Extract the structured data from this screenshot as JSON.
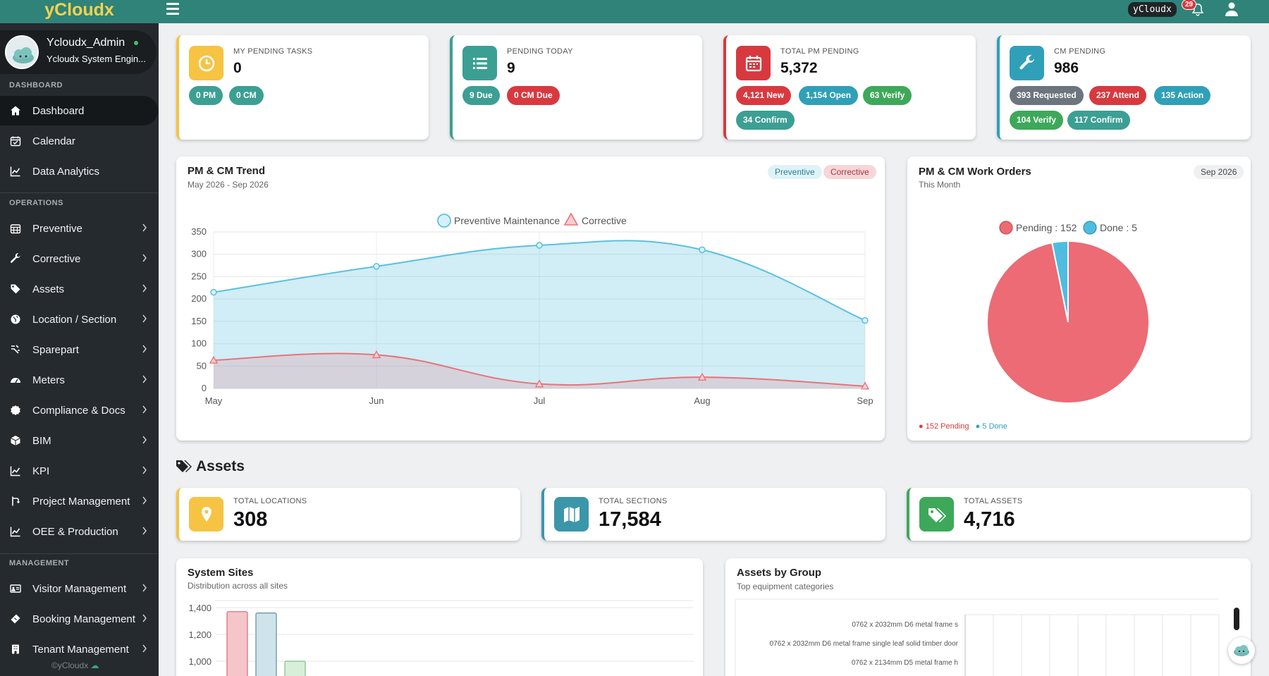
{
  "brand": "yCloudx",
  "topbar": {
    "chip": "yCloudx",
    "notifications": "29"
  },
  "profile": {
    "name": "Ycloudx_Admin",
    "role": "Ycloudx System Engin..."
  },
  "sidebar": {
    "sections": {
      "dashboard": "DASHBOARD",
      "operations": "OPERATIONS",
      "management": "MANAGEMENT"
    },
    "items": [
      {
        "label": "Dashboard",
        "icon": "home-icon"
      },
      {
        "label": "Calendar",
        "icon": "calendar-icon"
      },
      {
        "label": "Data Analytics",
        "icon": "line-chart-icon"
      },
      {
        "label": "Preventive",
        "icon": "calendar-grid-icon"
      },
      {
        "label": "Corrective",
        "icon": "wrench-icon"
      },
      {
        "label": "Assets",
        "icon": "tag-icon"
      },
      {
        "label": "Location / Section",
        "icon": "globe-icon"
      },
      {
        "label": "Sparepart",
        "icon": "parts-icon"
      },
      {
        "label": "Meters",
        "icon": "gauge-icon"
      },
      {
        "label": "Compliance & Docs",
        "icon": "badge-icon"
      },
      {
        "label": "BIM",
        "icon": "cube-icon"
      },
      {
        "label": "KPI",
        "icon": "line-chart-icon"
      },
      {
        "label": "Project Management",
        "icon": "branch-icon"
      },
      {
        "label": "OEE & Production",
        "icon": "line-chart-icon"
      },
      {
        "label": "Visitor Management",
        "icon": "id-card-icon"
      },
      {
        "label": "Booking Management",
        "icon": "ticket-icon"
      },
      {
        "label": "Tenant Management",
        "icon": "building-icon"
      }
    ],
    "footer": "©yCloudx"
  },
  "stats": {
    "my_tasks": {
      "label": "MY PENDING TASKS",
      "value": "0",
      "pills": [
        "0 PM",
        "0 CM"
      ],
      "color": "#f6c343"
    },
    "today": {
      "label": "PENDING TODAY",
      "value": "9",
      "pills": [
        "9 Due",
        "0 CM Due"
      ],
      "color": "#3c9f94"
    },
    "total_pm": {
      "label": "TOTAL PM PENDING",
      "value": "5,372",
      "pills": [
        "4,121 New",
        "1,154 Open",
        "63 Verify",
        "34 Confirm"
      ],
      "color": "#d8393f"
    },
    "cm": {
      "label": "CM PENDING",
      "value": "986",
      "pills": [
        "393 Requested",
        "237 Attend",
        "135 Action",
        "104 Verify",
        "117 Confirm"
      ],
      "color": "#2fa0b8"
    }
  },
  "trend": {
    "title": "PM & CM Trend",
    "subtitle": "May 2026 - Sep 2026",
    "tags": [
      "Preventive",
      "Corrective"
    ]
  },
  "workorders": {
    "title": "PM & CM Work Orders",
    "subtitle": "This Month",
    "month": "Sep 2026",
    "footer": [
      "152 Pending",
      "5 Done"
    ]
  },
  "assets_section": "Assets",
  "asset_stats": [
    {
      "label": "TOTAL LOCATIONS",
      "value": "308",
      "color": "#f6c343"
    },
    {
      "label": "TOTAL SECTIONS",
      "value": "17,584",
      "color": "#3c96aa"
    },
    {
      "label": "TOTAL ASSETS",
      "value": "4,716",
      "color": "#3ea85a"
    }
  ],
  "sites": {
    "title": "System Sites",
    "subtitle": "Distribution across all sites"
  },
  "groups": {
    "title": "Assets by Group",
    "subtitle": "Top equipment categories"
  },
  "chart_data": [
    {
      "type": "area",
      "title": "",
      "categories": [
        "May",
        "Jun",
        "Jul",
        "Aug",
        "Sep"
      ],
      "series": [
        {
          "name": "Preventive Maintenance",
          "values": [
            215,
            273,
            320,
            310,
            152
          ],
          "color": "#5bc0de"
        },
        {
          "name": "Corrective",
          "values": [
            63,
            75,
            10,
            25,
            5
          ],
          "color": "#e8737b"
        }
      ],
      "ylim": [
        0,
        350
      ],
      "yticks": [
        0,
        50,
        100,
        150,
        200,
        250,
        300,
        350
      ],
      "legend": "top"
    },
    {
      "type": "pie",
      "legend_labels": [
        "Pending : 152",
        "Done : 5"
      ],
      "slices": [
        {
          "name": "Pending",
          "value": 152,
          "color": "#ec6b75"
        },
        {
          "name": "Done",
          "value": 5,
          "color": "#4fbde0"
        }
      ]
    },
    {
      "type": "bar",
      "yticks": [
        1000,
        1200,
        1400
      ],
      "values": [
        1370,
        1360,
        1000
      ],
      "colors": [
        "#f4c5c9",
        "#cfe3ea",
        "#d7efd9"
      ],
      "borders": [
        "#d66a74",
        "#5e8ea3",
        "#7dbf87"
      ]
    },
    {
      "type": "bar",
      "orientation": "horizontal",
      "categories": [
        "0762 x 2032mm D6 metal frame s",
        "0762 x 2032mm D6 metal frame single leaf solid timber door",
        "0762 x 2134mm D5 metal frame h"
      ]
    }
  ]
}
